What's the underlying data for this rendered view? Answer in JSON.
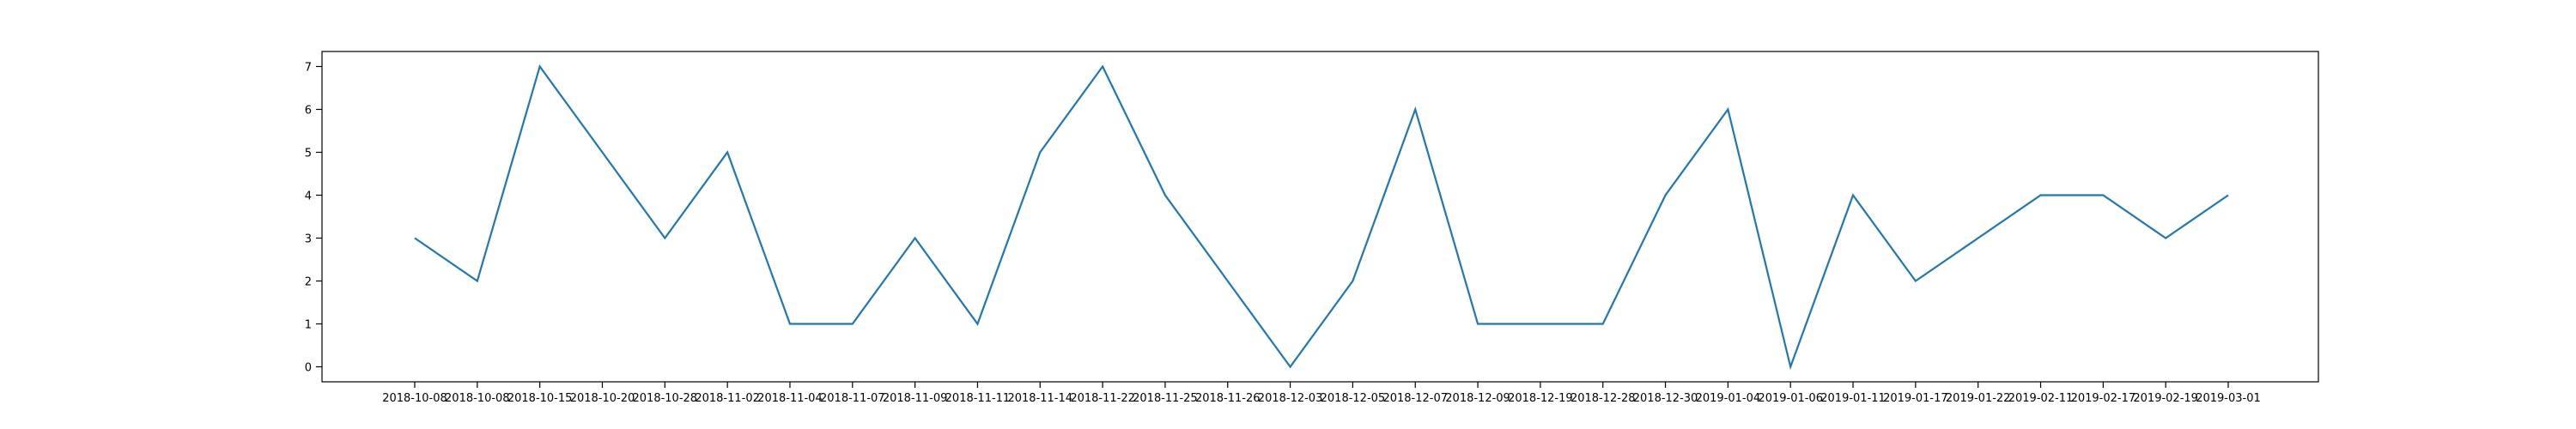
{
  "chart_data": {
    "type": "line",
    "title": "",
    "xlabel": "",
    "ylabel": "",
    "x": [
      "2018-10-08",
      "2018-10-08",
      "2018-10-15",
      "2018-10-20",
      "2018-10-28",
      "2018-11-02",
      "2018-11-04",
      "2018-11-07",
      "2018-11-09",
      "2018-11-11",
      "2018-11-14",
      "2018-11-22",
      "2018-11-25",
      "2018-11-26",
      "2018-12-03",
      "2018-12-05",
      "2018-12-07",
      "2018-12-09",
      "2018-12-19",
      "2018-12-28",
      "2018-12-30",
      "2019-01-04",
      "2019-01-06",
      "2019-01-11",
      "2019-01-17",
      "2019-01-22",
      "2019-02-11",
      "2019-02-17",
      "2019-02-19",
      "2019-03-01"
    ],
    "series": [
      {
        "values": [
          3,
          2,
          7,
          5,
          3,
          5,
          1,
          1,
          3,
          1,
          5,
          7,
          4,
          2,
          0,
          2,
          6,
          1,
          1,
          1,
          4,
          6,
          0,
          4,
          2,
          3,
          4,
          4,
          3,
          4
        ]
      }
    ],
    "yticks": [
      "0",
      "1",
      "2",
      "3",
      "4",
      "5",
      "6",
      "7"
    ],
    "ylim": [
      -0.35,
      7.35
    ],
    "grid": false,
    "line_color": "#1f77b4"
  }
}
